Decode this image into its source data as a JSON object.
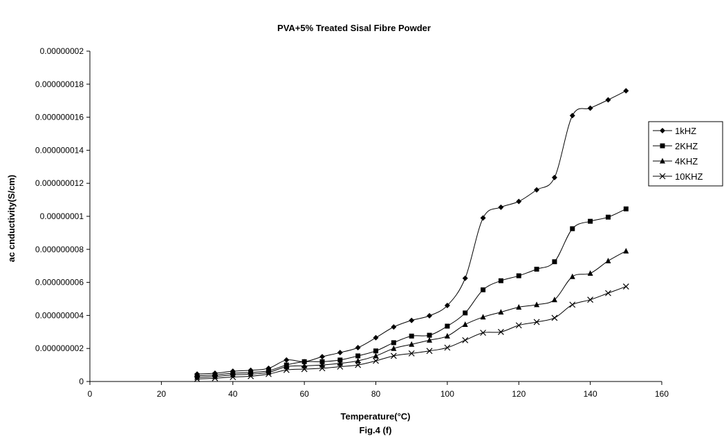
{
  "chart_data": {
    "type": "line",
    "title": "PVA+5% Treated Sisal Fibre Powder",
    "xlabel": "Temperature(°C)",
    "ylabel": "ac cnductivity(S/cm)",
    "caption": "Fig.4 (f)",
    "xlim": [
      0,
      160
    ],
    "ylim": [
      0,
      2e-08
    ],
    "x_ticks": [
      0,
      20,
      40,
      60,
      80,
      100,
      120,
      140,
      160
    ],
    "x_tick_labels": [
      "0",
      "20",
      "40",
      "60",
      "80",
      "100",
      "120",
      "140",
      "160"
    ],
    "y_ticks": [
      0,
      2e-09,
      4e-09,
      6e-09,
      8e-09,
      1e-08,
      1.2e-08,
      1.4e-08,
      1.6e-08,
      1.8e-08,
      2e-08
    ],
    "y_tick_labels": [
      "0",
      "0.000000002",
      "0.000000004",
      "0.000000006",
      "0.000000008",
      "0.00000001",
      "0.000000012",
      "0.000000014",
      "0.000000016",
      "0.000000018",
      "0.00000002"
    ],
    "grid": false,
    "legend_position": "right",
    "x": [
      30,
      35,
      40,
      45,
      50,
      55,
      60,
      65,
      70,
      75,
      80,
      85,
      90,
      95,
      100,
      105,
      110,
      115,
      120,
      125,
      130,
      135,
      140,
      145,
      150
    ],
    "series": [
      {
        "name": "1kHZ",
        "marker": "diamond",
        "values": [
          4.5e-10,
          5e-10,
          6.2e-10,
          6.8e-10,
          8e-10,
          1.3e-09,
          1.2e-09,
          1.5e-09,
          1.75e-09,
          2.05e-09,
          2.65e-09,
          3.3e-09,
          3.7e-09,
          3.98e-09,
          4.6e-09,
          6.25e-09,
          9.9e-09,
          1.055e-08,
          1.09e-08,
          1.16e-08,
          1.235e-08,
          1.61e-08,
          1.655e-08,
          1.705e-08,
          1.76e-08
        ]
      },
      {
        "name": "2KHZ",
        "marker": "square",
        "values": [
          3.5e-10,
          4e-10,
          5e-10,
          5.5e-10,
          6.5e-10,
          1e-09,
          1.2e-09,
          1.2e-09,
          1.3e-09,
          1.55e-09,
          1.85e-09,
          2.35e-09,
          2.75e-09,
          2.8e-09,
          3.35e-09,
          4.15e-09,
          5.55e-09,
          6.1e-09,
          6.4e-09,
          6.8e-09,
          7.25e-09,
          9.25e-09,
          9.7e-09,
          9.95e-09,
          1.045e-08
        ]
      },
      {
        "name": "4KHZ",
        "marker": "triangle",
        "values": [
          2.5e-10,
          3e-10,
          4e-10,
          4.5e-10,
          5.5e-10,
          9e-10,
          9.5e-10,
          1e-09,
          1.1e-09,
          1.25e-09,
          1.55e-09,
          2e-09,
          2.25e-09,
          2.5e-09,
          2.75e-09,
          3.45e-09,
          3.9e-09,
          4.2e-09,
          4.5e-09,
          4.65e-09,
          4.95e-09,
          6.35e-09,
          6.55e-09,
          7.3e-09,
          7.9e-09
        ]
      },
      {
        "name": "10KHZ",
        "marker": "x",
        "values": [
          1.5e-10,
          2e-10,
          2.7e-10,
          3.2e-10,
          4.5e-10,
          7e-10,
          7.5e-10,
          8e-10,
          9e-10,
          1e-09,
          1.25e-09,
          1.55e-09,
          1.7e-09,
          1.85e-09,
          2.05e-09,
          2.5e-09,
          2.95e-09,
          3e-09,
          3.4e-09,
          3.6e-09,
          3.85e-09,
          4.65e-09,
          4.95e-09,
          5.35e-09,
          5.75e-09
        ]
      }
    ]
  }
}
